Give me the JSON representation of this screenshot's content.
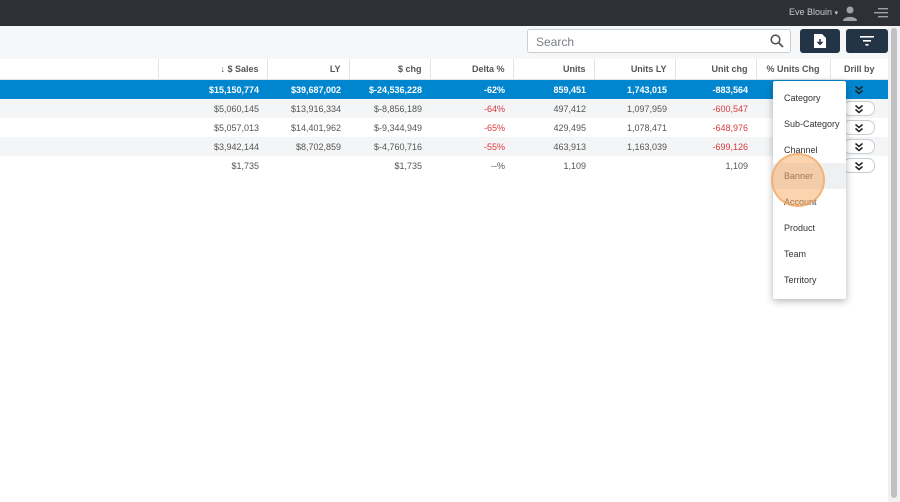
{
  "header": {
    "user_name": "Eve Blouin",
    "caret": "▾"
  },
  "toolbar": {
    "search_placeholder": "Search"
  },
  "table": {
    "columns": [
      "↓ $ Sales",
      "LY",
      "$ chg",
      "Delta %",
      "Units",
      "Units LY",
      "Unit chg",
      "% Units Chg",
      "Drill by"
    ],
    "rows": [
      {
        "sales": "$15,150,774",
        "ly": "$39,687,002",
        "chg": "$-24,536,228",
        "delta": "-62%",
        "units": "859,451",
        "units_ly": "1,743,015",
        "unit_chg": "-883,564",
        "pct": ""
      },
      {
        "sales": "$5,060,145",
        "ly": "$13,916,334",
        "chg": "$-8,856,189",
        "delta": "-64%",
        "units": "497,412",
        "units_ly": "1,097,959",
        "unit_chg": "-600,547",
        "pct": ""
      },
      {
        "sales": "$5,057,013",
        "ly": "$14,401,962",
        "chg": "$-9,344,949",
        "delta": "-65%",
        "units": "429,495",
        "units_ly": "1,078,471",
        "unit_chg": "-648,976",
        "pct": ""
      },
      {
        "sales": "$3,942,144",
        "ly": "$8,702,859",
        "chg": "$-4,760,716",
        "delta": "-55%",
        "units": "463,913",
        "units_ly": "1,163,039",
        "unit_chg": "-699,126",
        "pct": ""
      },
      {
        "sales": "$1,735",
        "ly": "",
        "chg": "$1,735",
        "delta": "--%",
        "units": "1,109",
        "units_ly": "",
        "unit_chg": "1,109",
        "pct": ""
      }
    ]
  },
  "drill_menu": {
    "items": [
      "Category",
      "Sub-Category",
      "Channel",
      "Banner",
      "Account",
      "Product",
      "Team",
      "Territory"
    ],
    "highlighted": "Banner"
  },
  "colors": {
    "header_bg": "#2d3035",
    "total_row_bg": "#0086cf",
    "negative": "#d9393e",
    "button_bg": "#243447"
  }
}
